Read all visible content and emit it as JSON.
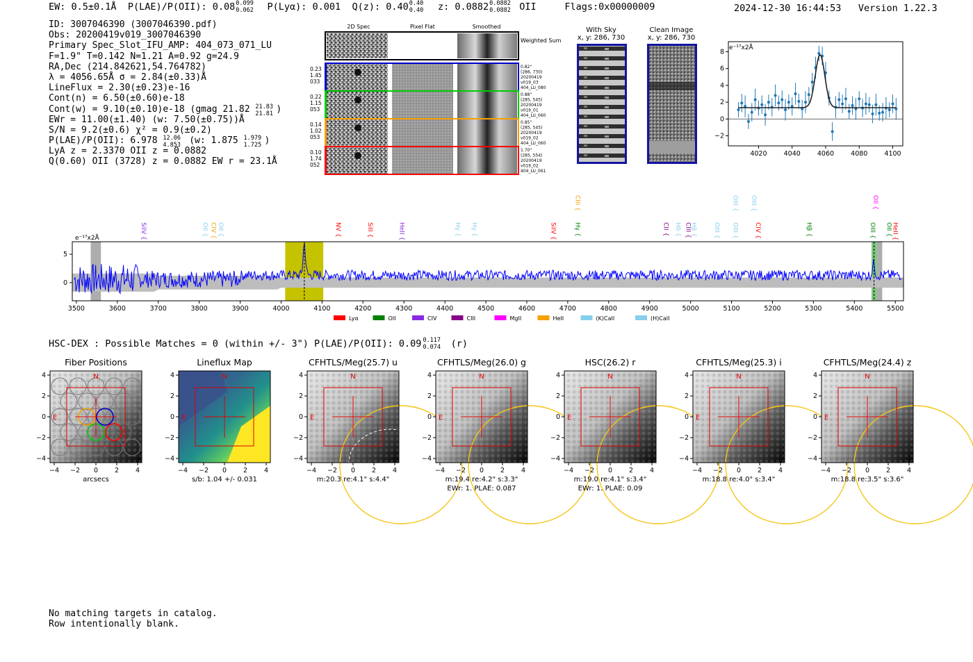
{
  "header": {
    "ew": "EW: 0.5±0.1Å",
    "plae": "P(LAE)/P(OII): 0.08",
    "plae_hi": "0.099",
    "plae_lo": "0.062",
    "plya": "P(Lyα): 0.001",
    "qz": "Q(z): 0.40",
    "qz_hi": "0.40",
    "qz_lo": "0.40",
    "z": "z: 0.0882",
    "z_hi": "0.0882",
    "z_lo": "0.0882",
    "z_line": "OII",
    "flags": "Flags:0x00000009",
    "timestamp": "2024-12-30 16:44:53",
    "version": "Version 1.22.3"
  },
  "info": {
    "id": "ID: 3007046390 (3007046390.pdf)",
    "obs": "Obs: 20200419v019_3007046390",
    "primary": "Primary Spec_Slot_IFU_AMP: 404_073_071_LU",
    "fparams": "F=1.9\"  T=0.142  N=1.21  A=0.92  g=24.9",
    "radec": "RA,Dec (214.842621,54.764782)",
    "lambda": "λ = 4056.65Å  σ = 2.84(±0.33)Å",
    "lineflux": "LineFlux = 2.30(±0.23)e-16",
    "contn": "Cont(n) = 6.50(±0.60)e-18",
    "contw": "Cont(w) = 9.10(±0.10)e-18 (gmag 21.82",
    "gmag_hi": "21.83",
    "gmag_lo": "21.81",
    "gmag_close": ")",
    "ewr": "EWr = 11.00(±1.40) (w: 7.50(±0.75))Å",
    "sn": "S/N = 9.2(±0.6)  χ² = 0.9(±0.2)",
    "plae": "P(LAE)/P(OII): 6.978",
    "plae_hi": "12.06",
    "plae_lo": "4.853",
    "plae_w": "(w: 1.875",
    "plae_w_hi": "1.979",
    "plae_w_lo": "1.725",
    "plae_w_close": ")",
    "lya": "LyA z = 2.3370  OII z = 0.0882",
    "q": "Q(0.60) OII (3728) z = 0.0882  EW r = 23.1Å"
  },
  "cutouts": {
    "col_headers": [
      "2D Spec",
      "Pixel Flat",
      "Smoothed"
    ],
    "weighted_label": "Weighted Sum",
    "rows": [
      {
        "left": [
          "0.23",
          "1.45",
          "033"
        ],
        "right": [
          "0.82\"",
          "(286, 730)",
          "20200419",
          "v019_03",
          "404_LU_080"
        ],
        "color": "#0000cc"
      },
      {
        "left": [
          "0.22",
          "1.15",
          "053"
        ],
        "right": [
          "0.88\"",
          "(285, 545)",
          "20200419",
          "v019_01",
          "404_LU_060"
        ],
        "color": "#00cc00"
      },
      {
        "left": [
          "0.14",
          "1.02",
          "053"
        ],
        "right": [
          "0.85\"",
          "(285, 545)",
          "20200419",
          "v019_02",
          "404_LU_060"
        ],
        "color": "#f5a000"
      },
      {
        "left": [
          "0.10",
          "1.74",
          "052"
        ],
        "right": [
          "1.70\"",
          "(285, 554)",
          "20200419",
          "v019_02",
          "404_LU_061"
        ],
        "color": "#ff0000"
      }
    ],
    "with_sky_title": "With Sky",
    "with_sky_coord": "x, y: 286, 730",
    "clean_title": "Clean Image",
    "clean_coord": "x, y: 286, 730"
  },
  "zoom_chart": {
    "type": "scatter",
    "ylabel": "e⁻¹⁷x2Å",
    "xlim": [
      4002,
      4106
    ],
    "ylim": [
      -3.2,
      9.2
    ],
    "xticks": [
      "4020",
      "4040",
      "4060",
      "4080",
      "4100"
    ],
    "yticks": [
      "−2",
      "0",
      "2",
      "4",
      "6",
      "8"
    ],
    "points": [
      {
        "x": 4008,
        "y": 1.1
      },
      {
        "x": 4010,
        "y": 1.9
      },
      {
        "x": 4012,
        "y": 1.5
      },
      {
        "x": 4014,
        "y": -0.3
      },
      {
        "x": 4016,
        "y": 0.8
      },
      {
        "x": 4018,
        "y": 2.3
      },
      {
        "x": 4020,
        "y": 1.3
      },
      {
        "x": 4022,
        "y": 1.7
      },
      {
        "x": 4024,
        "y": 0.5
      },
      {
        "x": 4026,
        "y": 2.0
      },
      {
        "x": 4028,
        "y": 1.4
      },
      {
        "x": 4030,
        "y": 2.8
      },
      {
        "x": 4032,
        "y": 1.9
      },
      {
        "x": 4034,
        "y": 2.3
      },
      {
        "x": 4036,
        "y": 1.1
      },
      {
        "x": 4038,
        "y": 2.0
      },
      {
        "x": 4040,
        "y": 1.5
      },
      {
        "x": 4042,
        "y": 3.0
      },
      {
        "x": 4044,
        "y": 2.1
      },
      {
        "x": 4046,
        "y": 1.2
      },
      {
        "x": 4048,
        "y": 2.0
      },
      {
        "x": 4050,
        "y": 2.9
      },
      {
        "x": 4052,
        "y": 4.4
      },
      {
        "x": 4054,
        "y": 6.1
      },
      {
        "x": 4056,
        "y": 7.8
      },
      {
        "x": 4058,
        "y": 7.5
      },
      {
        "x": 4060,
        "y": 5.5
      },
      {
        "x": 4062,
        "y": 2.5
      },
      {
        "x": 4064,
        "y": -1.5
      },
      {
        "x": 4066,
        "y": 1.4
      },
      {
        "x": 4068,
        "y": 2.3
      },
      {
        "x": 4070,
        "y": 1.8
      },
      {
        "x": 4072,
        "y": 2.4
      },
      {
        "x": 4074,
        "y": 0.9
      },
      {
        "x": 4076,
        "y": 1.6
      },
      {
        "x": 4078,
        "y": 1.2
      },
      {
        "x": 4080,
        "y": 2.4
      },
      {
        "x": 4082,
        "y": 1.3
      },
      {
        "x": 4084,
        "y": 1.8
      },
      {
        "x": 4086,
        "y": 1.7
      },
      {
        "x": 4088,
        "y": 0.6
      },
      {
        "x": 4090,
        "y": 1.7
      },
      {
        "x": 4092,
        "y": 0.7
      },
      {
        "x": 4094,
        "y": 0.8
      },
      {
        "x": 4096,
        "y": 1.3
      },
      {
        "x": 4098,
        "y": 1.1
      },
      {
        "x": 4100,
        "y": 1.8
      },
      {
        "x": 4102,
        "y": 1.2
      }
    ],
    "fit": {
      "center": 4056.65,
      "sigma": 2.84,
      "amplitude": 6.3,
      "continuum": 1.35
    }
  },
  "spectrum_chart": {
    "type": "line",
    "ylabel": "e⁻¹⁷x2Å",
    "xlim": [
      3490,
      5520
    ],
    "ylim": [
      -3.2,
      7.2
    ],
    "xticks": [
      "3500",
      "3600",
      "3700",
      "3800",
      "3900",
      "4000",
      "4100",
      "4200",
      "4300",
      "4400",
      "4500",
      "4600",
      "4700",
      "4800",
      "4900",
      "5000",
      "5100",
      "5200",
      "5300",
      "5400",
      "5500"
    ],
    "yticks": [
      "0",
      "5"
    ],
    "highlight_band": [
      4010,
      4103
    ],
    "peak_wave": 4056.65,
    "lines": [
      {
        "label": "SiIV",
        "w": 3660,
        "color": "#8a2be2",
        "row": 0
      },
      {
        "label": "OII",
        "w": 3810,
        "color": "#87ceeb",
        "row": 0
      },
      {
        "label": "CIV",
        "w": 3830,
        "color": "#f5a000",
        "row": 0
      },
      {
        "label": "OII",
        "w": 3848,
        "color": "#87ceeb",
        "row": 0
      },
      {
        "label": "NV",
        "w": 4135,
        "color": "#ff0000",
        "row": 0
      },
      {
        "label": "SiII",
        "w": 4213,
        "color": "#ff0000",
        "row": 0
      },
      {
        "label": "HeII",
        "w": 4290,
        "color": "#8a2be2",
        "row": 0
      },
      {
        "label": "Hγ",
        "w": 4427,
        "color": "#87ceeb",
        "row": 0
      },
      {
        "label": "Hγ",
        "w": 4468,
        "color": "#87ceeb",
        "row": 0
      },
      {
        "label": "SiIV",
        "w": 4660,
        "color": "#ff0000",
        "row": 0
      },
      {
        "label": "CIII",
        "w": 4720,
        "color": "#f5a000",
        "row": 1
      },
      {
        "label": "Hγ",
        "w": 4720,
        "color": "#008000",
        "row": 0
      },
      {
        "label": "CII",
        "w": 4935,
        "color": "#8a008a",
        "row": 0
      },
      {
        "label": "Hδ",
        "w": 4965,
        "color": "#87ceeb",
        "row": 0
      },
      {
        "label": "CIII",
        "w": 4990,
        "color": "#8a008a",
        "row": 0
      },
      {
        "label": "Hβ",
        "w": 5003,
        "color": "#87ceeb",
        "row": 0
      },
      {
        "label": "OIII",
        "w": 5060,
        "color": "#87ceeb",
        "row": 0
      },
      {
        "label": "OIII",
        "w": 5105,
        "color": "#87ceeb",
        "row": 0
      },
      {
        "label": "CIV",
        "w": 5160,
        "color": "#ff0000",
        "row": 0
      },
      {
        "label": "OIII",
        "w": 5105,
        "color": "#87ceeb",
        "row": 1
      },
      {
        "label": "OIII",
        "w": 5150,
        "color": "#87ceeb",
        "row": 1
      },
      {
        "label": "Hβ",
        "w": 5285,
        "color": "#008000",
        "row": 0
      },
      {
        "label": "OIII",
        "w": 5440,
        "color": "#008000",
        "row": 0
      },
      {
        "label": "OII",
        "w": 5447,
        "color": "#ff00ff",
        "row": 1
      },
      {
        "label": "OII",
        "w": 5480,
        "color": "#008000",
        "row": 0
      },
      {
        "label": "HeII",
        "w": 5495,
        "color": "#ff0000",
        "row": 0
      }
    ],
    "legend": [
      {
        "label": "Lyα",
        "color": "#ff0000"
      },
      {
        "label": "OII",
        "color": "#008000"
      },
      {
        "label": "CIV",
        "color": "#8a2be2"
      },
      {
        "label": "CIII",
        "color": "#8a008a"
      },
      {
        "label": "MgII",
        "color": "#ff00ff"
      },
      {
        "label": "HeII",
        "color": "#f5a000"
      },
      {
        "label": "(K)CaII",
        "color": "#87ceeb"
      },
      {
        "label": "(H)CaII",
        "color": "#87ceeb"
      }
    ]
  },
  "hsc": {
    "title_text": "HSC-DEX : Possible Matches = 0 (within +/- 3\")  P(LAE)/P(OII): 0.09",
    "hi": "0.117",
    "lo": "0.074",
    "band": "(r)"
  },
  "panels": [
    {
      "title": "Fiber Positions",
      "cap1": "arcsecs",
      "cap2": ""
    },
    {
      "title": "Lineflux Map",
      "cap1": "s/b: 1.04 +/- 0.031",
      "cap2": ""
    },
    {
      "title": "CFHTLS/Meg(25.7) u",
      "cap1": "m:20.3  re:4.1\"  s:4.4\"",
      "cap2": ""
    },
    {
      "title": "CFHTLS/Meg(26.0) g",
      "cap1": "m:19.4  re:4.2\"  s:3.3\"",
      "cap2": "EWr: 1. PLAE: 0.087"
    },
    {
      "title": "HSC(26.2) r",
      "cap1": "m:19.0  re:4.1\"  s:3.4\"",
      "cap2": "EWr: 1. PLAE: 0.09"
    },
    {
      "title": "CFHTLS/Meg(25.3) i",
      "cap1": "m:18.8  re:4.0\"  s:3.4\"",
      "cap2": ""
    },
    {
      "title": "CFHTLS/Meg(24.4) z",
      "cap1": "m:18.8  re:3.5\"  s:3.6\"",
      "cap2": ""
    }
  ],
  "panel_axis": {
    "ticks": [
      "−4",
      "−2",
      "0",
      "2",
      "4"
    ],
    "north": "N",
    "east": "E"
  },
  "footer": {
    "line1": "No matching targets in catalog.",
    "line2": "Row intentionally blank."
  }
}
